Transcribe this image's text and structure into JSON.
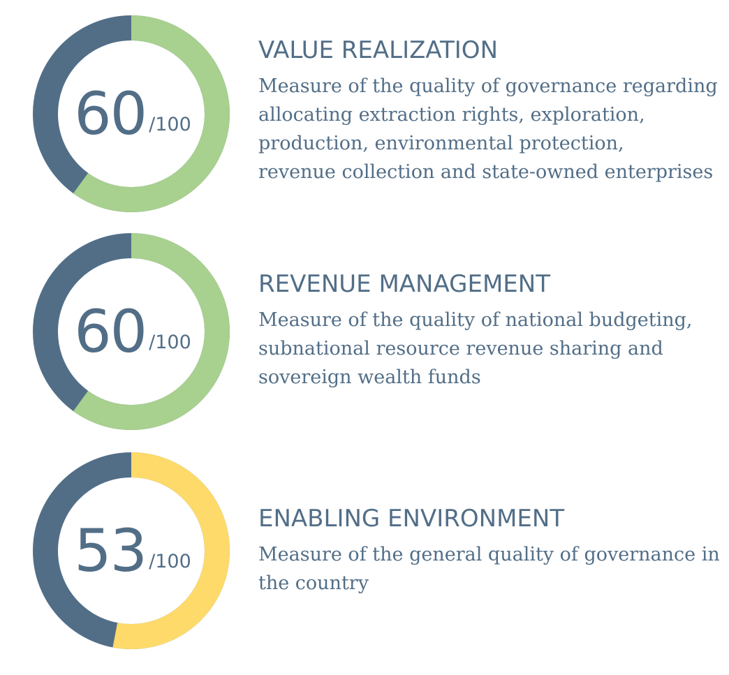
{
  "colors": {
    "remainder": "#526e87",
    "green": "#a8d08e",
    "yellow": "#fdda6a",
    "text": "#526e87"
  },
  "chart_data": [
    {
      "type": "pie",
      "title": "VALUE REALIZATION",
      "value": 60,
      "max": 100,
      "value_label": "60",
      "max_label": "/100",
      "fill_color": "green",
      "description_lines": [
        "Measure of the quality of governance regarding",
        "allocating extraction rights, exploration,",
        "production, environmental protection,",
        "revenue collection and state-owned enterprises"
      ]
    },
    {
      "type": "pie",
      "title": "REVENUE MANAGEMENT",
      "value": 60,
      "max": 100,
      "value_label": "60",
      "max_label": "/100",
      "fill_color": "green",
      "description_lines": [
        "Measure of the quality of national budgeting,",
        "subnational resource revenue sharing and",
        "sovereign wealth funds"
      ]
    },
    {
      "type": "pie",
      "title": "ENABLING ENVIRONMENT",
      "value": 53,
      "max": 100,
      "value_label": "53",
      "max_label": "/100",
      "fill_color": "yellow",
      "description_lines": [
        "Measure of the general quality of governance in",
        "the country"
      ]
    }
  ]
}
